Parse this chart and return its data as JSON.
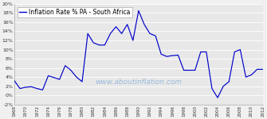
{
  "title": "Inflation Rate % PA - South Africa",
  "line_color": "#0000cc",
  "bg_color": "#f0f0f0",
  "plot_bg_color": "#e8e8e8",
  "grid_color": "#ffffff",
  "watermark": "www.aboutinflation.com",
  "watermark_color": "#99bbdd",
  "ylim": [
    -2,
    20
  ],
  "yticks": [
    -2,
    0,
    2,
    4,
    6,
    8,
    10,
    12,
    14,
    16,
    18,
    20
  ],
  "xlim": [
    1968,
    2012
  ],
  "years": [
    1968,
    1969,
    1970,
    1971,
    1972,
    1973,
    1974,
    1975,
    1976,
    1977,
    1978,
    1979,
    1980,
    1981,
    1982,
    1983,
    1984,
    1985,
    1986,
    1987,
    1988,
    1989,
    1990,
    1991,
    1992,
    1993,
    1994,
    1995,
    1996,
    1997,
    1998,
    1999,
    2000,
    2001,
    2002,
    2003,
    2004,
    2005,
    2006,
    2007,
    2008,
    2009,
    2010,
    2011,
    2012
  ],
  "values": [
    3.2,
    1.5,
    1.8,
    1.9,
    1.5,
    1.2,
    4.3,
    3.9,
    3.5,
    6.5,
    5.5,
    4.0,
    3.0,
    13.5,
    11.5,
    11.0,
    11.0,
    13.5,
    15.0,
    13.5,
    15.5,
    12.0,
    18.5,
    15.5,
    13.5,
    13.0,
    9.0,
    8.5,
    8.7,
    8.8,
    5.5,
    5.5,
    5.5,
    9.5,
    9.5,
    1.5,
    -0.5,
    2.0,
    3.0,
    9.5,
    10.0,
    4.0,
    4.5,
    5.7,
    5.7
  ],
  "xtick_years": [
    1968,
    1970,
    1972,
    1974,
    1976,
    1978,
    1980,
    1982,
    1984,
    1986,
    1988,
    1990,
    1992,
    1994,
    1996,
    1998,
    2000,
    2002,
    2004,
    2006,
    2008,
    2010,
    2012
  ],
  "legend_fontsize": 5.5,
  "tick_fontsize": 4.5,
  "watermark_fontsize": 6.5
}
